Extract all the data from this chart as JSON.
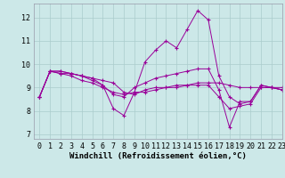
{
  "background_color": "#cce8e8",
  "grid_color": "#aacccc",
  "line_color": "#990099",
  "marker": "+",
  "xlabel": "Windchill (Refroidissement éolien,°C)",
  "xlabel_fontsize": 6.5,
  "tick_fontsize": 6,
  "xlim": [
    -0.5,
    23
  ],
  "ylim": [
    6.8,
    12.6
  ],
  "yticks": [
    7,
    8,
    9,
    10,
    11,
    12
  ],
  "xticks": [
    0,
    1,
    2,
    3,
    4,
    5,
    6,
    7,
    8,
    9,
    10,
    11,
    12,
    13,
    14,
    15,
    16,
    17,
    18,
    19,
    20,
    21,
    22,
    23
  ],
  "series": [
    [
      8.6,
      9.7,
      9.7,
      9.6,
      9.5,
      9.3,
      9.1,
      8.1,
      7.8,
      8.8,
      10.1,
      10.6,
      11.0,
      10.7,
      11.5,
      12.3,
      11.9,
      9.5,
      8.6,
      8.3,
      8.4,
      9.1,
      9.0,
      8.9
    ],
    [
      8.6,
      9.7,
      9.7,
      9.6,
      9.5,
      9.4,
      9.3,
      9.2,
      8.8,
      8.7,
      8.9,
      9.0,
      9.0,
      9.1,
      9.1,
      9.2,
      9.2,
      9.2,
      9.1,
      9.0,
      9.0,
      9.0,
      9.0,
      9.0
    ],
    [
      8.6,
      9.7,
      9.6,
      9.5,
      9.3,
      9.2,
      9.0,
      8.8,
      8.7,
      8.8,
      8.8,
      8.9,
      9.0,
      9.0,
      9.1,
      9.1,
      9.1,
      8.6,
      8.1,
      8.2,
      8.3,
      9.0,
      9.0,
      8.9
    ],
    [
      8.6,
      9.7,
      9.6,
      9.6,
      9.5,
      9.4,
      9.1,
      8.7,
      8.6,
      9.0,
      9.2,
      9.4,
      9.5,
      9.6,
      9.7,
      9.8,
      9.8,
      8.9,
      7.3,
      8.4,
      8.4,
      9.1,
      9.0,
      8.9
    ]
  ]
}
